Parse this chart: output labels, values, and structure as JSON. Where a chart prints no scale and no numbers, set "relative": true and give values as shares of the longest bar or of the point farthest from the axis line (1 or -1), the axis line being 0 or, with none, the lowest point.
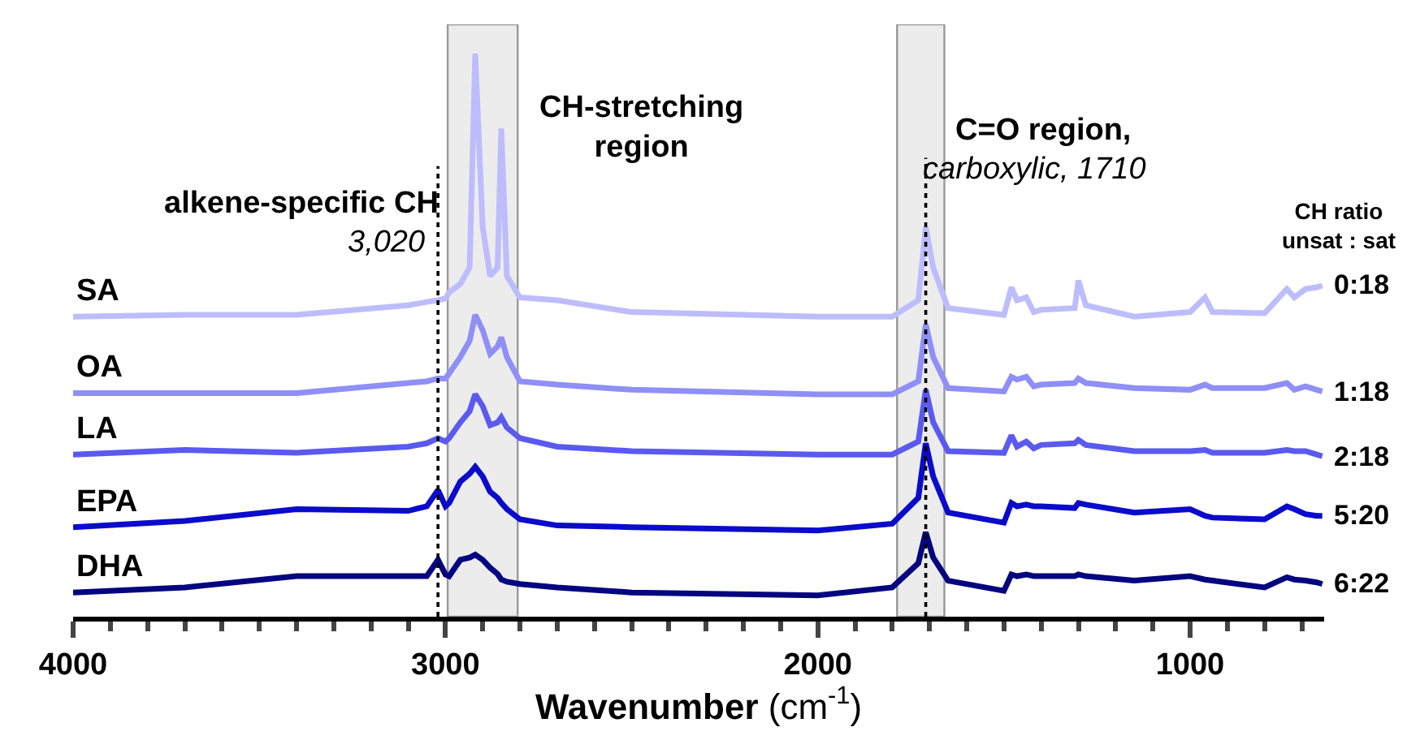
{
  "chart_data": {
    "type": "line",
    "relative": true,
    "xlabel": "Wavenumber (cm$^{-1}$)",
    "xlim": [
      4000,
      640
    ],
    "xticks": [
      4000,
      3000,
      2000,
      1000
    ],
    "legend": false,
    "marker": "none",
    "line_style": "solid",
    "x": [
      4000,
      3700,
      3400,
      3100,
      3050,
      3020,
      3000,
      2990,
      2960,
      2935,
      2920,
      2900,
      2880,
      2860,
      2850,
      2835,
      2800,
      2700,
      2500,
      2000,
      1800,
      1730,
      1710,
      1690,
      1650,
      1500,
      1480,
      1465,
      1440,
      1420,
      1400,
      1310,
      1300,
      1280,
      1150,
      1000,
      960,
      940,
      800,
      740,
      720,
      690,
      660,
      645
    ],
    "series": [
      {
        "name": "SA",
        "color": "#bdbdfd",
        "values": [
          0.533,
          0.536,
          0.536,
          0.553,
          0.559,
          0.562,
          0.565,
          0.576,
          0.591,
          0.62,
          1.0,
          0.692,
          0.605,
          0.62,
          0.867,
          0.605,
          0.567,
          0.562,
          0.541,
          0.533,
          0.533,
          0.562,
          0.692,
          0.62,
          0.548,
          0.536,
          0.585,
          0.562,
          0.567,
          0.541,
          0.545,
          0.548,
          0.597,
          0.553,
          0.533,
          0.541,
          0.567,
          0.541,
          0.539,
          0.582,
          0.567,
          0.582,
          0.585,
          0.588
        ]
      },
      {
        "name": "OA",
        "color": "#8f8ff7",
        "values": [
          0.397,
          0.397,
          0.397,
          0.415,
          0.418,
          0.423,
          0.423,
          0.432,
          0.461,
          0.49,
          0.536,
          0.509,
          0.467,
          0.48,
          0.496,
          0.461,
          0.418,
          0.412,
          0.403,
          0.395,
          0.395,
          0.418,
          0.519,
          0.461,
          0.406,
          0.4,
          0.426,
          0.421,
          0.426,
          0.409,
          0.412,
          0.415,
          0.423,
          0.415,
          0.406,
          0.403,
          0.412,
          0.406,
          0.406,
          0.415,
          0.403,
          0.409,
          0.403,
          0.4
        ]
      },
      {
        "name": "LA",
        "color": "#5a5af0",
        "values": [
          0.288,
          0.296,
          0.291,
          0.302,
          0.308,
          0.317,
          0.311,
          0.317,
          0.345,
          0.365,
          0.395,
          0.374,
          0.34,
          0.345,
          0.354,
          0.336,
          0.317,
          0.302,
          0.294,
          0.288,
          0.288,
          0.311,
          0.403,
          0.345,
          0.294,
          0.291,
          0.322,
          0.302,
          0.311,
          0.299,
          0.305,
          0.308,
          0.314,
          0.305,
          0.294,
          0.294,
          0.296,
          0.291,
          0.291,
          0.296,
          0.294,
          0.294,
          0.288,
          0.285
        ]
      },
      {
        "name": "EPA",
        "color": "#0b0bcc",
        "values": [
          0.159,
          0.17,
          0.191,
          0.188,
          0.196,
          0.225,
          0.196,
          0.202,
          0.24,
          0.254,
          0.266,
          0.249,
          0.222,
          0.211,
          0.202,
          0.191,
          0.173,
          0.162,
          0.159,
          0.153,
          0.165,
          0.211,
          0.308,
          0.249,
          0.185,
          0.167,
          0.202,
          0.196,
          0.199,
          0.196,
          0.196,
          0.193,
          0.202,
          0.199,
          0.185,
          0.191,
          0.179,
          0.176,
          0.173,
          0.196,
          0.191,
          0.182,
          0.179,
          0.179
        ]
      },
      {
        "name": "DHA",
        "color": "#050580",
        "values": [
          0.043,
          0.052,
          0.072,
          0.072,
          0.072,
          0.101,
          0.075,
          0.072,
          0.101,
          0.105,
          0.11,
          0.101,
          0.087,
          0.076,
          0.066,
          0.062,
          0.058,
          0.052,
          0.043,
          0.038,
          0.052,
          0.095,
          0.15,
          0.105,
          0.064,
          0.046,
          0.075,
          0.072,
          0.075,
          0.072,
          0.072,
          0.072,
          0.075,
          0.072,
          0.064,
          0.072,
          0.066,
          0.064,
          0.052,
          0.07,
          0.066,
          0.064,
          0.061,
          0.058
        ]
      }
    ],
    "bands": [
      {
        "axis": "x",
        "from": 2994,
        "to": 2806,
        "label": "CH-stretching region",
        "color": "#ececec"
      },
      {
        "axis": "x",
        "from": 1787,
        "to": 1660,
        "label": "C=O region,",
        "color": "#ececec"
      }
    ],
    "ref_lines": [
      {
        "axis": "x",
        "value": 3020,
        "label": "3,020",
        "color": "#000000",
        "line_style": "dotted"
      },
      {
        "axis": "x",
        "value": 1710,
        "label": "carboxylic, 1710",
        "color": "#000000",
        "line_style": "dotted"
      }
    ],
    "annotations": [
      "alkene-specific CH",
      "CH ratio\nunsat : sat",
      "0:18",
      "1:18",
      "2:18",
      "5:20",
      "6:22"
    ]
  }
}
